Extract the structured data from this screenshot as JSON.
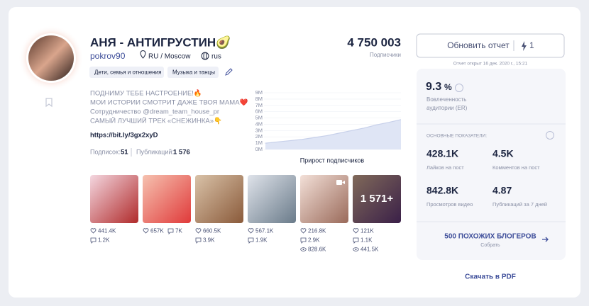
{
  "profile": {
    "name": "АНЯ - АНТИГРУСТИН🥑",
    "username": "pokrov90",
    "location": "RU / Moscow",
    "language": "rus",
    "tags": [
      "Дети, семья и отношения",
      "Музыка и танцы"
    ],
    "subscribers": "4 750 003",
    "subscribers_label": "Подписчики",
    "bio": [
      "ПОДНИМУ ТЕБЕ НАСТРОЕНИЕ!🔥",
      "МОИ ИСТОРИИ СМОТРИТ ДАЖЕ ТВОЯ МАМА❤️",
      "Сотрудничество @dream_team_house_pr",
      "САМЫЙ ЛУЧШИЙ ТРЕК «СНЕЖИНКА»👇"
    ],
    "link": "https://bit.ly/3gx2xyD",
    "following_label": "Подписок:",
    "following": "51",
    "posts_label": "Публикаций:",
    "posts": "1 576"
  },
  "chart_data": {
    "type": "area",
    "title": "Прирост подписчиков",
    "values": [
      1000000,
      1200000,
      1400000,
      1600000,
      1900000,
      2200000,
      2600000,
      3000000,
      3400000,
      3900000,
      4300000,
      4750000
    ],
    "color": "#dfe5f5",
    "line_color": "#c7d0ea",
    "ylim": [
      0,
      9000000
    ],
    "yticks": [
      {
        "value": 0,
        "label": "0M"
      },
      {
        "value": 1000000,
        "label": "1M"
      },
      {
        "value": 2000000,
        "label": "2M"
      },
      {
        "value": 3000000,
        "label": "3M"
      },
      {
        "value": 4000000,
        "label": "4M"
      },
      {
        "value": 5000000,
        "label": "5M"
      },
      {
        "value": 6000000,
        "label": "6M"
      },
      {
        "value": 7000000,
        "label": "7M"
      },
      {
        "value": 8000000,
        "label": "8M"
      },
      {
        "value": 9000000,
        "label": "9M"
      }
    ],
    "grid": true
  },
  "posts": [
    {
      "likes": "441.4K",
      "comments": "1.2K"
    },
    {
      "likes": "657K",
      "comments": "7K"
    },
    {
      "likes": "660.5K",
      "comments": "3.9K"
    },
    {
      "likes": "567.1K",
      "comments": "1.9K"
    },
    {
      "likes": "216.8K",
      "comments": "2.9K",
      "views": "828.6K"
    },
    {
      "likes": "121K",
      "comments": "1.1K",
      "views": "441.5K",
      "overlay": "1 571+"
    }
  ],
  "report": {
    "button": "Обновить отчет",
    "credits": "1",
    "opened": "Отчет открыт 16 дек. 2020 г., 15:21"
  },
  "stats": {
    "er_value": "9.3",
    "er_unit": "%",
    "er_label": [
      "Вовлеченность",
      "аудитории (ER)"
    ],
    "section": "ОСНОВНЫЕ ПОКАЗАТЕЛИ:",
    "metrics": [
      {
        "value": "428.1K",
        "label": "Лайков на пост"
      },
      {
        "value": "4.5K",
        "label": "Комментов на пост"
      },
      {
        "value": "842.8K",
        "label": "Просмотров видео"
      },
      {
        "value": "4.87",
        "label": "Публикаций за 7 дней"
      }
    ],
    "similar": "500 ПОХОЖИХ БЛОГЕРОВ",
    "similar_action": "Собрать",
    "download": "Скачать в PDF"
  }
}
